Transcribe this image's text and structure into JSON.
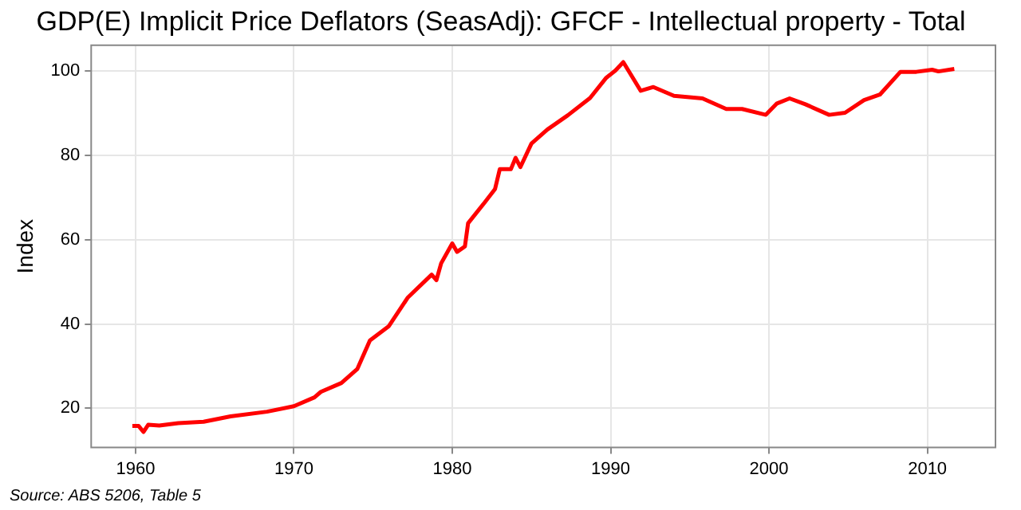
{
  "chart_data": {
    "type": "line",
    "title": "GDP(E) Implicit Price Deflators (SeasAdj): GFCF - Intellectual property - Total",
    "ylabel": "Index",
    "annotations": [
      "Source: ABS 5206, Table 5"
    ],
    "x": [
      1959.8,
      1960.2,
      1960.5,
      1960.8,
      1961.5,
      1962.7,
      1964.3,
      1966,
      1968.3,
      1970,
      1971.3,
      1971.7,
      1973,
      1974,
      1974.8,
      1976,
      1977.2,
      1978.7,
      1979,
      1979.3,
      1980,
      1980.3,
      1980.8,
      1981,
      1982,
      1982.7,
      1983,
      1983.7,
      1984,
      1984.3,
      1985,
      1986,
      1987.3,
      1988.7,
      1989.7,
      1990.3,
      1990.8,
      1991.9,
      1992.7,
      1994,
      1995.8,
      1997.3,
      1998.3,
      1999.8,
      2000.5,
      2001.3,
      2002.3,
      2003.8,
      2004.8,
      2006,
      2007,
      2008.3,
      2009.3,
      2010.3,
      2010.7,
      2011.7
    ],
    "series": [
      {
        "color": "#ff0000",
        "values": [
          15.8,
          15.8,
          14.4,
          16.1,
          15.9,
          16.5,
          16.8,
          18.1,
          19.2,
          20.5,
          22.6,
          23.9,
          26,
          29.3,
          36.1,
          39.5,
          46.3,
          51.7,
          50.4,
          54.4,
          59.1,
          57.1,
          58.4,
          63.9,
          68.6,
          72,
          76.7,
          76.7,
          79.4,
          77.2,
          82.8,
          86.1,
          89.5,
          93.6,
          98.3,
          100.1,
          102.1,
          95.3,
          96.2,
          94.1,
          93.5,
          91,
          91,
          89.6,
          92.3,
          93.5,
          92.1,
          89.6,
          90.1,
          93.1,
          94.4,
          99.8,
          99.8,
          100.3,
          99.9,
          100.5
        ]
      }
    ],
    "xlim": [
      1957.2,
      2014.3
    ],
    "xticks": [
      1960,
      1970,
      1980,
      1990,
      2000,
      2010
    ],
    "ylim": [
      10.7,
      106.1
    ],
    "yticks": [
      20,
      40,
      60,
      80,
      100
    ],
    "grid": true,
    "legend": false,
    "marker": "none",
    "line_style": "solid"
  }
}
